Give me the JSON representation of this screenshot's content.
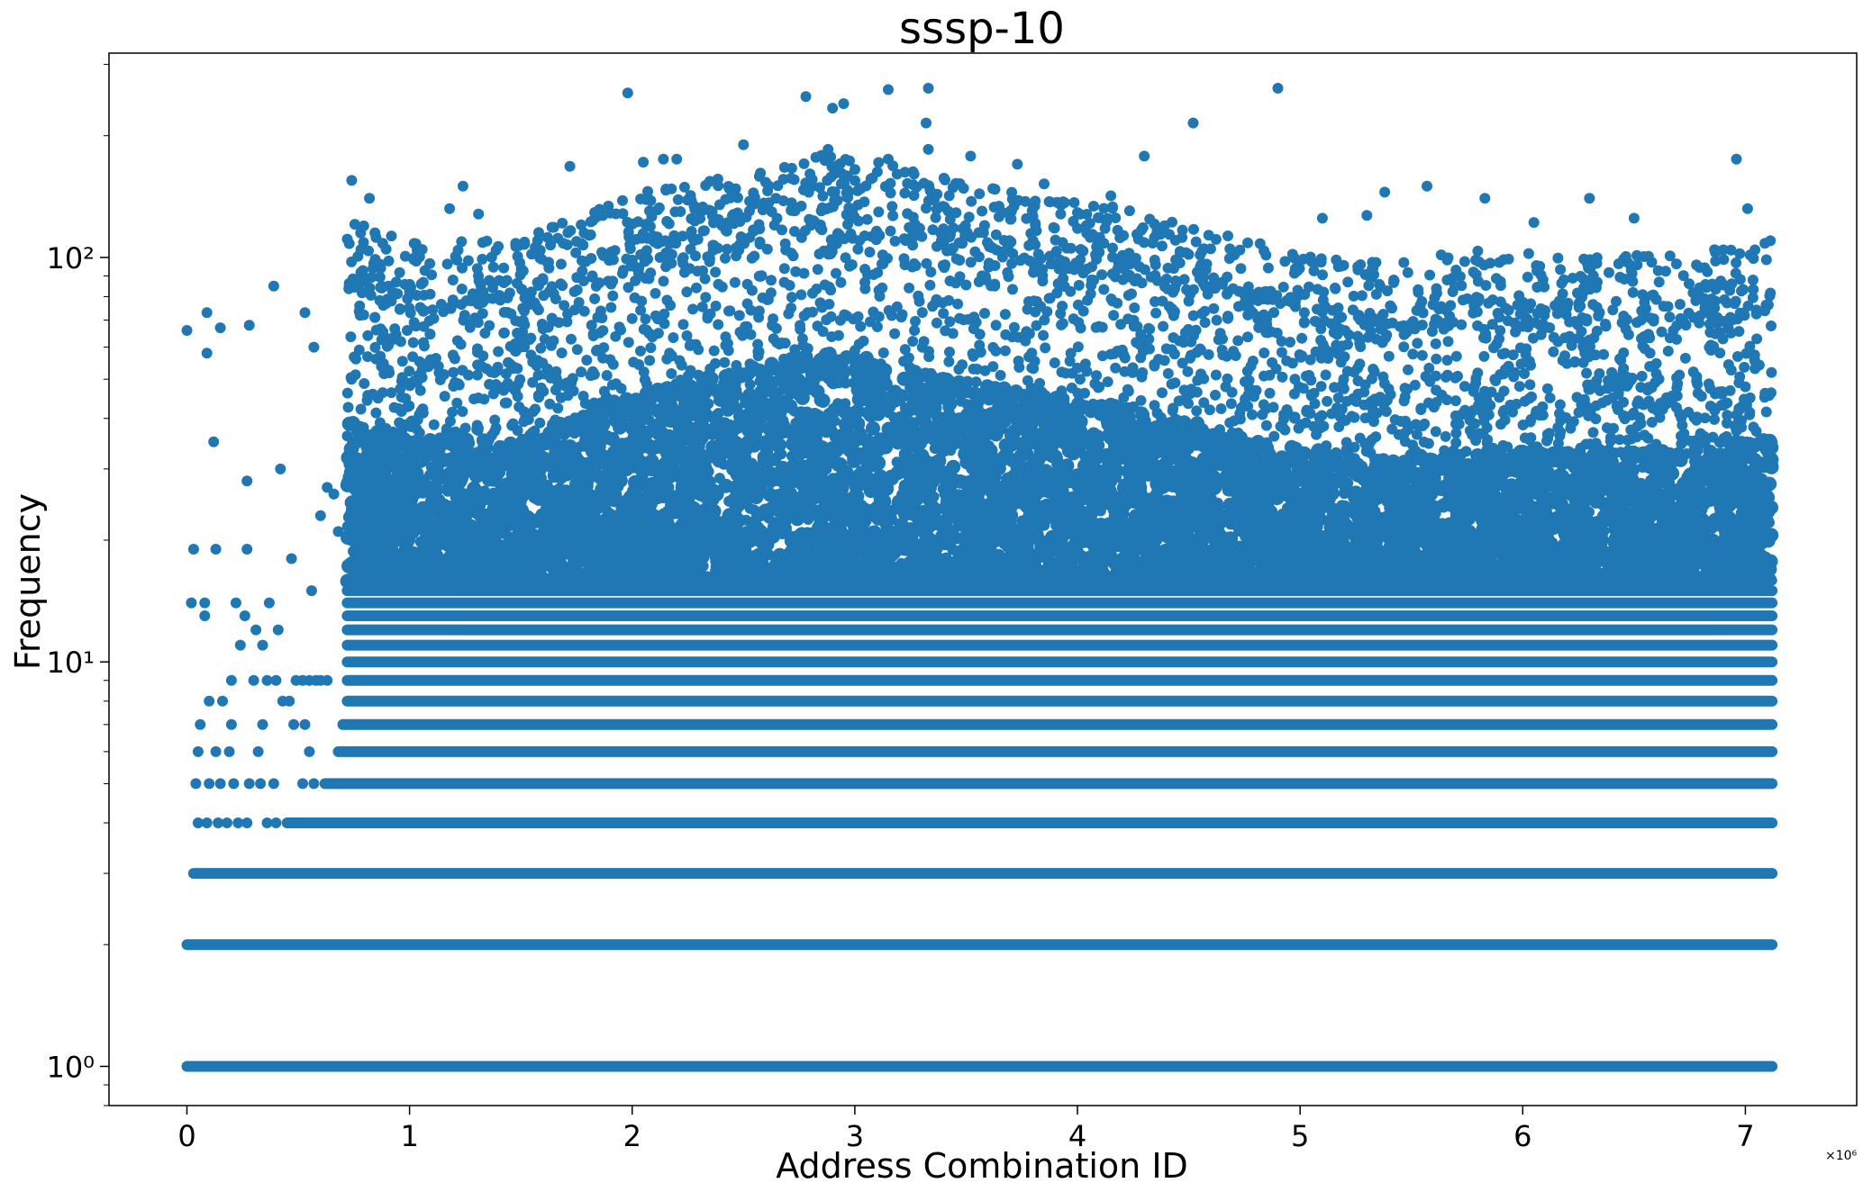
{
  "chart_data": {
    "type": "scatter",
    "title": "sssp-10",
    "xlabel": "Address Combination ID",
    "ylabel": "Frequency",
    "x_scale_label": "×10⁶",
    "xlim": [
      -0.35,
      7.5
    ],
    "ylim": [
      0.8,
      320
    ],
    "yscale": "log",
    "grid": false,
    "legend": "none",
    "x_ticks": [
      0,
      1,
      2,
      3,
      4,
      5,
      6,
      7
    ],
    "x_tick_labels": [
      "0",
      "1",
      "2",
      "3",
      "4",
      "5",
      "6",
      "7"
    ],
    "y_ticks": [
      1,
      10,
      100
    ],
    "y_tick_labels": [
      "10⁰",
      "10¹",
      "10²"
    ],
    "color": "#1f77b4",
    "x_range_in_units": [
      0,
      7.12
    ],
    "series": [
      {
        "bands": [
          {
            "y": 1,
            "x_start": 0.0,
            "x_end": 7.12
          },
          {
            "y": 2,
            "x_start": 0.0,
            "x_end": 7.12
          },
          {
            "y": 3,
            "x_start": 0.03,
            "x_end": 7.12
          },
          {
            "y": 4,
            "x_start": 0.45,
            "x_end": 7.12
          },
          {
            "y": 5,
            "x_start": 0.62,
            "x_end": 7.12
          },
          {
            "y": 6,
            "x_start": 0.68,
            "x_end": 7.12
          },
          {
            "y": 7,
            "x_start": 0.7,
            "x_end": 7.12
          },
          {
            "y": 8,
            "x_start": 0.72,
            "x_end": 7.12
          },
          {
            "y": 9,
            "x_start": 0.72,
            "x_end": 7.12
          },
          {
            "y": 10,
            "x_start": 0.72,
            "x_end": 7.12
          },
          {
            "y": 11,
            "x_start": 0.72,
            "x_end": 7.12
          },
          {
            "y": 12,
            "x_start": 0.72,
            "x_end": 7.12
          },
          {
            "y": 13,
            "x_start": 0.72,
            "x_end": 7.12
          },
          {
            "y": 14,
            "x_start": 0.72,
            "x_end": 7.12
          },
          {
            "y": 15,
            "x_start": 0.72,
            "x_end": 7.12
          }
        ],
        "outlier_points": [
          [
            0.0,
            66
          ],
          [
            0.09,
            73
          ],
          [
            0.15,
            67
          ],
          [
            0.09,
            58
          ],
          [
            0.12,
            35
          ],
          [
            0.28,
            68
          ],
          [
            0.39,
            85
          ],
          [
            0.53,
            73
          ],
          [
            0.57,
            60
          ],
          [
            0.27,
            28
          ],
          [
            0.42,
            30
          ],
          [
            0.03,
            19
          ],
          [
            0.13,
            19
          ],
          [
            0.27,
            19
          ],
          [
            0.47,
            18
          ],
          [
            0.02,
            14
          ],
          [
            0.08,
            13
          ],
          [
            0.08,
            14
          ],
          [
            0.22,
            14
          ],
          [
            0.37,
            14
          ],
          [
            0.26,
            13
          ],
          [
            0.31,
            12
          ],
          [
            0.41,
            12
          ],
          [
            0.56,
            15
          ],
          [
            0.6,
            23
          ],
          [
            0.63,
            27
          ],
          [
            0.66,
            26
          ],
          [
            0.68,
            21
          ],
          [
            0.1,
            8
          ],
          [
            0.16,
            8
          ],
          [
            0.2,
            9
          ],
          [
            0.24,
            11
          ],
          [
            0.3,
            9
          ],
          [
            0.34,
            11
          ],
          [
            0.36,
            9
          ],
          [
            0.4,
            9
          ],
          [
            0.43,
            8
          ],
          [
            0.46,
            8
          ],
          [
            0.49,
            9
          ],
          [
            0.52,
            9
          ],
          [
            0.55,
            9
          ],
          [
            0.58,
            9
          ],
          [
            0.6,
            9
          ],
          [
            0.63,
            9
          ],
          [
            0.06,
            7
          ],
          [
            0.2,
            7
          ],
          [
            0.34,
            7
          ],
          [
            0.48,
            7
          ],
          [
            0.53,
            7
          ],
          [
            0.05,
            6
          ],
          [
            0.13,
            6
          ],
          [
            0.19,
            6
          ],
          [
            0.32,
            6
          ],
          [
            0.55,
            6
          ],
          [
            0.04,
            5
          ],
          [
            0.1,
            5
          ],
          [
            0.15,
            5
          ],
          [
            0.21,
            5
          ],
          [
            0.28,
            5
          ],
          [
            0.33,
            5
          ],
          [
            0.39,
            5
          ],
          [
            0.52,
            5
          ],
          [
            0.57,
            5
          ],
          [
            0.05,
            4
          ],
          [
            0.09,
            4
          ],
          [
            0.14,
            4
          ],
          [
            0.18,
            4
          ],
          [
            0.23,
            4
          ],
          [
            0.27,
            4
          ],
          [
            0.36,
            4
          ],
          [
            0.4,
            4
          ],
          [
            0.74,
            155
          ],
          [
            0.82,
            140
          ],
          [
            0.78,
            115
          ],
          [
            1.18,
            132
          ],
          [
            1.24,
            150
          ],
          [
            1.31,
            128
          ],
          [
            1.72,
            168
          ],
          [
            1.98,
            255
          ],
          [
            2.05,
            172
          ],
          [
            2.14,
            175
          ],
          [
            2.2,
            175
          ],
          [
            2.5,
            190
          ],
          [
            2.78,
            250
          ],
          [
            2.9,
            234
          ],
          [
            2.95,
            240
          ],
          [
            3.15,
            260
          ],
          [
            3.33,
            262
          ],
          [
            3.32,
            215
          ],
          [
            3.33,
            185
          ],
          [
            3.15,
            175
          ],
          [
            2.88,
            185
          ],
          [
            3.52,
            178
          ],
          [
            3.73,
            170
          ],
          [
            4.3,
            178
          ],
          [
            4.52,
            215
          ],
          [
            4.9,
            262
          ],
          [
            5.57,
            150
          ],
          [
            5.38,
            145
          ],
          [
            5.83,
            140
          ],
          [
            6.3,
            140
          ],
          [
            6.96,
            175
          ],
          [
            7.01,
            132
          ],
          [
            6.5,
            125
          ],
          [
            5.1,
            125
          ],
          [
            5.3,
            127
          ],
          [
            6.05,
            122
          ],
          [
            4.15,
            142
          ],
          [
            3.85,
            152
          ],
          [
            3.62,
            148
          ]
        ],
        "density_envelope": [
          {
            "x": 0.72,
            "y_top": 95
          },
          {
            "x": 1.0,
            "y_top": 85
          },
          {
            "x": 1.5,
            "y_top": 85
          },
          {
            "x": 2.0,
            "y_top": 110
          },
          {
            "x": 2.5,
            "y_top": 125
          },
          {
            "x": 2.9,
            "y_top": 140
          },
          {
            "x": 3.3,
            "y_top": 125
          },
          {
            "x": 3.8,
            "y_top": 110
          },
          {
            "x": 4.3,
            "y_top": 100
          },
          {
            "x": 4.8,
            "y_top": 85
          },
          {
            "x": 5.3,
            "y_top": 75
          },
          {
            "x": 5.8,
            "y_top": 80
          },
          {
            "x": 6.3,
            "y_top": 78
          },
          {
            "x": 6.8,
            "y_top": 80
          },
          {
            "x": 7.12,
            "y_top": 85
          }
        ]
      }
    ]
  }
}
